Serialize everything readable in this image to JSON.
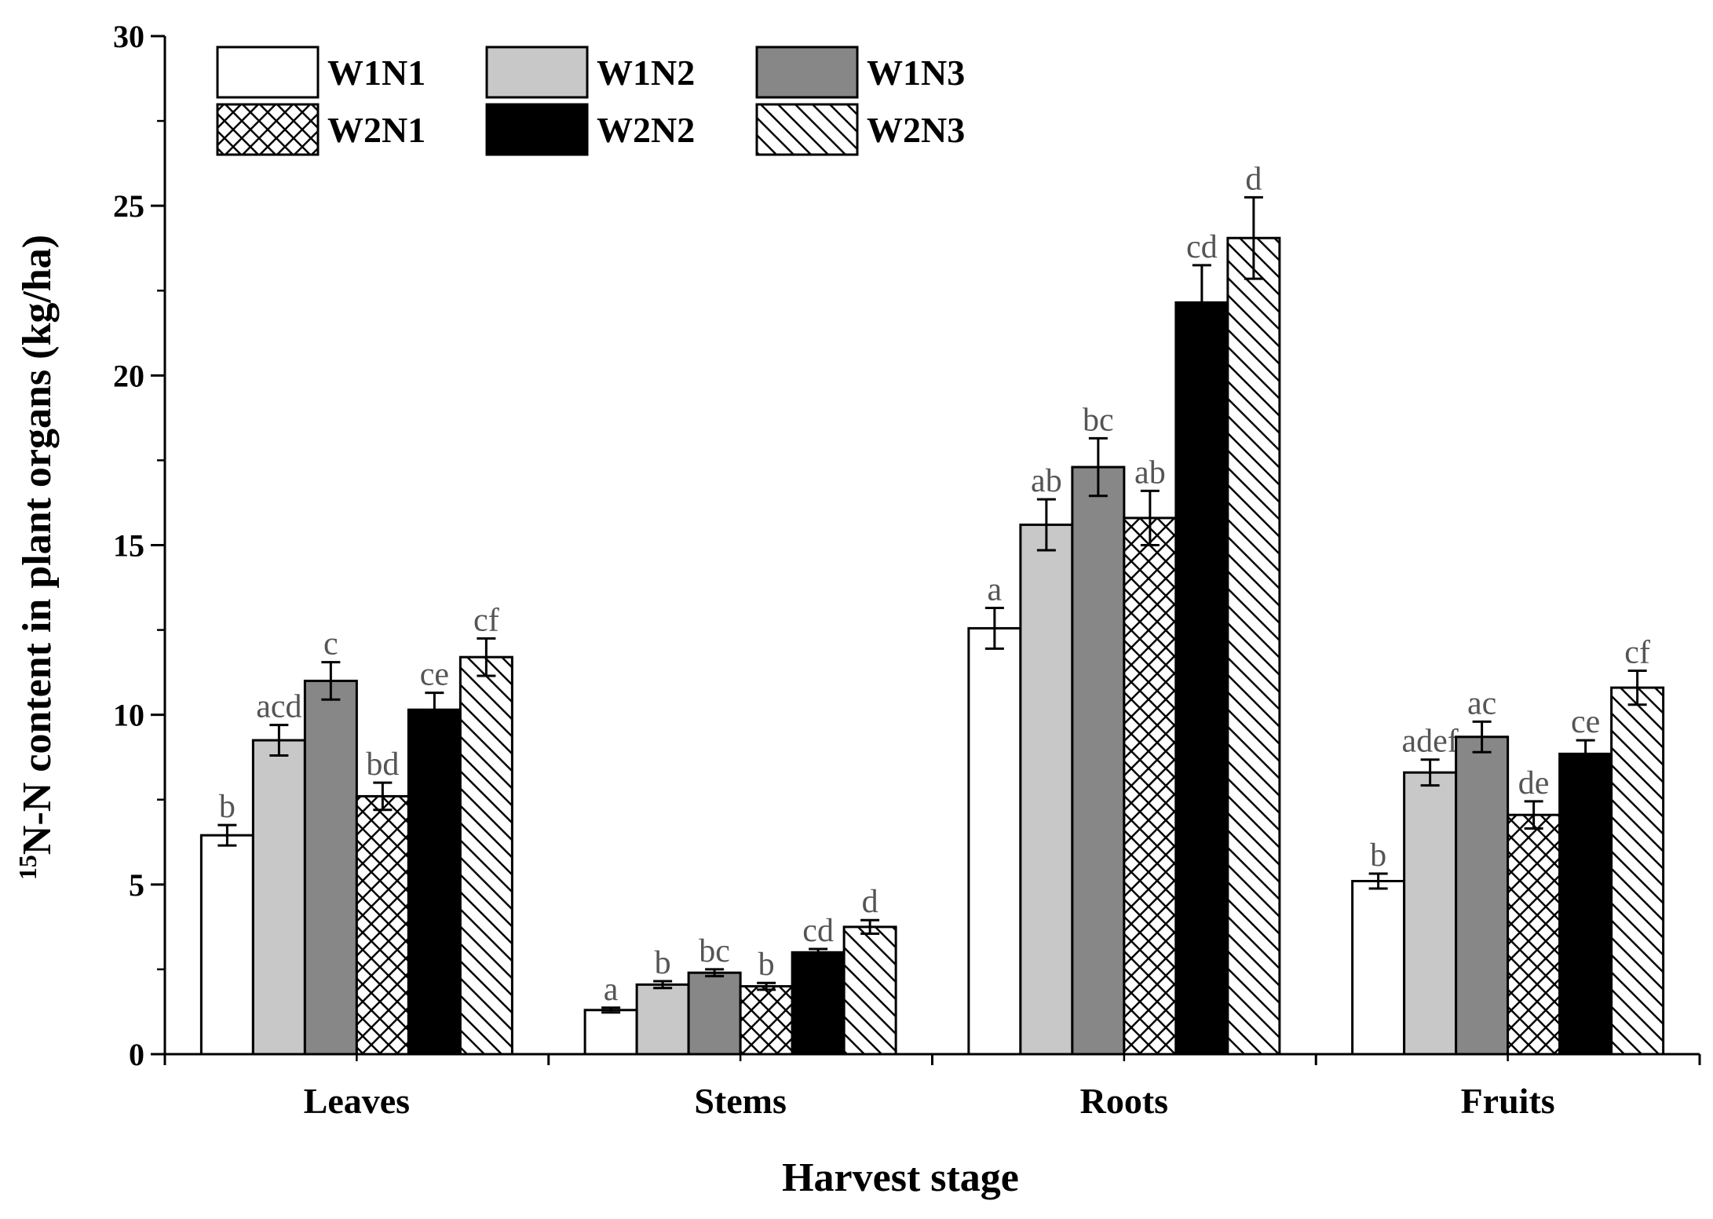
{
  "chart_data": {
    "type": "bar",
    "title": "",
    "xlabel": "Harvest stage",
    "ylabel_sup": "15",
    "ylabel": "N-N content in plant organs (kg/ha)",
    "ylim": [
      0,
      30
    ],
    "yticks": [
      0,
      5,
      10,
      15,
      20,
      25,
      30
    ],
    "grid": false,
    "legend_position": "top-left",
    "categories": [
      "Leaves",
      "Stems",
      "Roots",
      "Fruits"
    ],
    "series": [
      {
        "name": "W1N1",
        "pattern": "white",
        "values": [
          6.45,
          1.3,
          12.55,
          5.1
        ],
        "errors": [
          0.3,
          0.07,
          0.6,
          0.22
        ],
        "labels": [
          "b",
          "a",
          "a",
          "b"
        ]
      },
      {
        "name": "W1N2",
        "pattern": "light-gray",
        "values": [
          9.25,
          2.05,
          15.6,
          8.3
        ],
        "errors": [
          0.45,
          0.1,
          0.75,
          0.38
        ],
        "labels": [
          "acd",
          "b",
          "ab",
          "adef"
        ]
      },
      {
        "name": "W1N3",
        "pattern": "dark-gray",
        "values": [
          11.0,
          2.4,
          17.3,
          9.35
        ],
        "errors": [
          0.55,
          0.1,
          0.85,
          0.45
        ],
        "labels": [
          "c",
          "bc",
          "bc",
          "ac"
        ]
      },
      {
        "name": "W2N1",
        "pattern": "crosshatch",
        "values": [
          7.6,
          2.0,
          15.8,
          7.05
        ],
        "errors": [
          0.4,
          0.1,
          0.8,
          0.4
        ],
        "labels": [
          "bd",
          "b",
          "ab",
          "de"
        ]
      },
      {
        "name": "W2N2",
        "pattern": "black",
        "values": [
          10.15,
          3.0,
          22.15,
          8.85
        ],
        "errors": [
          0.5,
          0.1,
          1.1,
          0.4
        ],
        "labels": [
          "ce",
          "cd",
          "cd",
          "ce"
        ]
      },
      {
        "name": "W2N3",
        "pattern": "diagonal",
        "values": [
          11.7,
          3.75,
          24.05,
          10.8
        ],
        "errors": [
          0.55,
          0.2,
          1.2,
          0.5
        ],
        "labels": [
          "cf",
          "d",
          "d",
          "cf"
        ]
      }
    ]
  }
}
